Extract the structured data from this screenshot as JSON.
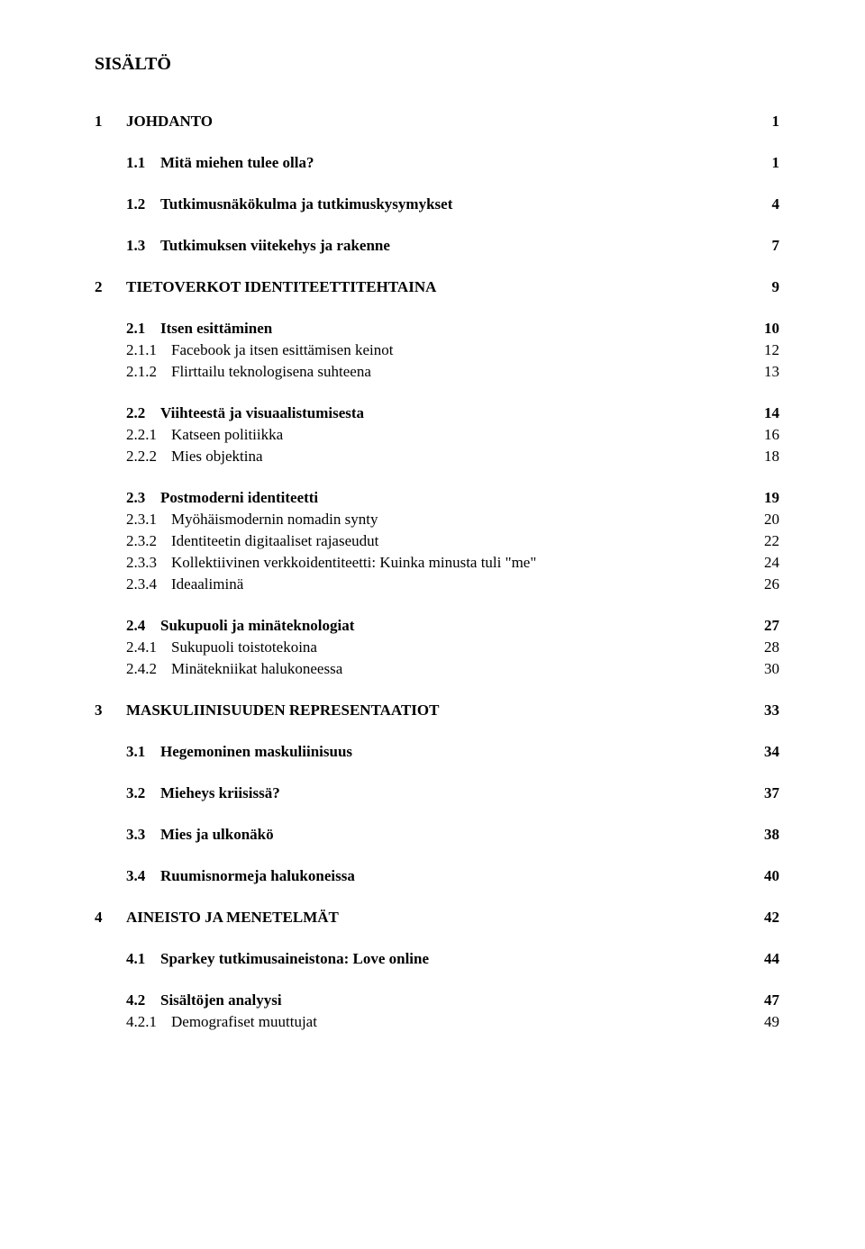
{
  "title": "SISÄLTÖ",
  "entries": [
    {
      "level": 1,
      "num": "1",
      "text": "JOHDANTO",
      "page": "1",
      "first": true
    },
    {
      "level": 2,
      "num": "1.1",
      "text": "Mitä miehen tulee olla?",
      "page": "1"
    },
    {
      "level": 2,
      "num": "1.2",
      "text": "Tutkimusnäkökulma ja tutkimuskysymykset",
      "page": "4"
    },
    {
      "level": 2,
      "num": "1.3",
      "text": "Tutkimuksen viitekehys ja rakenne",
      "page": "7"
    },
    {
      "level": 1,
      "num": "2",
      "text": "TIETOVERKOT IDENTITEETTITEHTAINA",
      "page": "9"
    },
    {
      "level": 2,
      "num": "2.1",
      "text": "Itsen esittäminen",
      "page": "10"
    },
    {
      "level": 3,
      "num": "2.1.1",
      "text": "Facebook ja itsen esittämisen keinot",
      "page": "12"
    },
    {
      "level": 3,
      "num": "2.1.2",
      "text": "Flirttailu teknologisena suhteena",
      "page": "13"
    },
    {
      "level": 2,
      "num": "2.2",
      "text": "Viihteestä ja visuaalistumisesta",
      "page": "14"
    },
    {
      "level": 3,
      "num": "2.2.1",
      "text": "Katseen politiikka",
      "page": "16"
    },
    {
      "level": 3,
      "num": "2.2.2",
      "text": "Mies objektina",
      "page": "18"
    },
    {
      "level": 2,
      "num": "2.3",
      "text": "Postmoderni identiteetti",
      "page": "19"
    },
    {
      "level": 3,
      "num": "2.3.1",
      "text": "Myöhäismodernin nomadin synty",
      "page": "20"
    },
    {
      "level": 3,
      "num": "2.3.2",
      "text": "Identiteetin digitaaliset rajaseudut",
      "page": "22"
    },
    {
      "level": 3,
      "num": "2.3.3",
      "text": "Kollektiivinen verkkoidentiteetti: Kuinka minusta tuli \"me\"",
      "page": "24"
    },
    {
      "level": 3,
      "num": "2.3.4",
      "text": "Ideaaliminä",
      "page": "26"
    },
    {
      "level": 2,
      "num": "2.4",
      "text": "Sukupuoli ja minäteknologiat",
      "page": "27"
    },
    {
      "level": 3,
      "num": "2.4.1",
      "text": "Sukupuoli toistotekoina",
      "page": "28"
    },
    {
      "level": 3,
      "num": "2.4.2",
      "text": "Minätekniikat halukoneessa",
      "page": "30"
    },
    {
      "level": 1,
      "num": "3",
      "text": "MASKULIINISUUDEN REPRESENTAATIOT",
      "page": "33"
    },
    {
      "level": 2,
      "num": "3.1",
      "text": "Hegemoninen maskuliinisuus",
      "page": "34"
    },
    {
      "level": 2,
      "num": "3.2",
      "text": "Mieheys kriisissä?",
      "page": "37"
    },
    {
      "level": 2,
      "num": "3.3",
      "text": "Mies ja ulkonäkö",
      "page": "38"
    },
    {
      "level": 2,
      "num": "3.4",
      "text": "Ruumisnormeja halukoneissa",
      "page": "40"
    },
    {
      "level": 1,
      "num": "4",
      "text": "AINEISTO JA MENETELMÄT",
      "page": "42"
    },
    {
      "level": 2,
      "num": "4.1",
      "text": "Sparkey tutkimusaineistona: Love online",
      "page": "44"
    },
    {
      "level": 2,
      "num": "4.2",
      "text": "Sisältöjen analyysi",
      "page": "47"
    },
    {
      "level": 3,
      "num": "4.2.1",
      "text": "Demografiset muuttujat",
      "page": "49"
    }
  ]
}
